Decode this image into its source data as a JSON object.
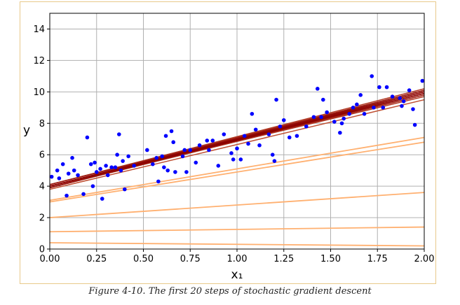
{
  "caption": "Figure 4-10. The first 20 steps of stochastic gradient descent",
  "chart_data": {
    "type": "scatter",
    "xlabel": "x₁",
    "ylabel": "y",
    "xlim": [
      0,
      2
    ],
    "ylim": [
      0,
      15
    ],
    "x_ticks": [
      "0.00",
      "0.25",
      "0.50",
      "0.75",
      "1.00",
      "1.25",
      "1.50",
      "1.75",
      "2.00"
    ],
    "y_ticks": [
      "0",
      "2",
      "4",
      "6",
      "8",
      "10",
      "12",
      "14"
    ],
    "grid": true,
    "colors": {
      "points": "#0000ff",
      "early_lines": "#ffb070",
      "late_lines": "#8b0000",
      "grid": "#b0b0b0"
    },
    "points": [
      [
        0.01,
        4.6
      ],
      [
        0.04,
        5.0
      ],
      [
        0.05,
        4.5
      ],
      [
        0.07,
        5.4
      ],
      [
        0.09,
        3.4
      ],
      [
        0.1,
        4.8
      ],
      [
        0.12,
        5.8
      ],
      [
        0.13,
        5.0
      ],
      [
        0.15,
        4.7
      ],
      [
        0.18,
        3.5
      ],
      [
        0.2,
        7.1
      ],
      [
        0.22,
        5.4
      ],
      [
        0.23,
        4.0
      ],
      [
        0.24,
        5.5
      ],
      [
        0.25,
        4.9
      ],
      [
        0.27,
        5.1
      ],
      [
        0.28,
        3.2
      ],
      [
        0.3,
        5.3
      ],
      [
        0.31,
        4.7
      ],
      [
        0.33,
        5.2
      ],
      [
        0.35,
        5.2
      ],
      [
        0.36,
        6.0
      ],
      [
        0.37,
        7.3
      ],
      [
        0.38,
        5.0
      ],
      [
        0.39,
        5.6
      ],
      [
        0.4,
        3.8
      ],
      [
        0.42,
        5.9
      ],
      [
        0.45,
        5.3
      ],
      [
        0.52,
        6.3
      ],
      [
        0.55,
        5.4
      ],
      [
        0.57,
        5.8
      ],
      [
        0.58,
        4.3
      ],
      [
        0.6,
        5.9
      ],
      [
        0.61,
        5.2
      ],
      [
        0.62,
        7.2
      ],
      [
        0.63,
        5.0
      ],
      [
        0.65,
        7.5
      ],
      [
        0.66,
        6.8
      ],
      [
        0.67,
        4.9
      ],
      [
        0.71,
        5.9
      ],
      [
        0.72,
        6.3
      ],
      [
        0.73,
        4.9
      ],
      [
        0.75,
        6.3
      ],
      [
        0.78,
        5.5
      ],
      [
        0.8,
        6.6
      ],
      [
        0.84,
        6.9
      ],
      [
        0.85,
        6.3
      ],
      [
        0.87,
        6.9
      ],
      [
        0.9,
        5.3
      ],
      [
        0.93,
        7.3
      ],
      [
        0.97,
        6.1
      ],
      [
        0.98,
        5.7
      ],
      [
        1.0,
        6.4
      ],
      [
        1.02,
        5.7
      ],
      [
        1.04,
        7.2
      ],
      [
        1.06,
        6.7
      ],
      [
        1.08,
        8.6
      ],
      [
        1.1,
        7.6
      ],
      [
        1.12,
        6.6
      ],
      [
        1.17,
        7.3
      ],
      [
        1.19,
        6.0
      ],
      [
        1.2,
        5.6
      ],
      [
        1.21,
        9.5
      ],
      [
        1.23,
        7.8
      ],
      [
        1.25,
        8.2
      ],
      [
        1.28,
        7.1
      ],
      [
        1.32,
        7.2
      ],
      [
        1.37,
        7.8
      ],
      [
        1.41,
        8.4
      ],
      [
        1.43,
        10.2
      ],
      [
        1.45,
        8.4
      ],
      [
        1.46,
        9.5
      ],
      [
        1.48,
        8.7
      ],
      [
        1.52,
        8.1
      ],
      [
        1.55,
        7.4
      ],
      [
        1.56,
        8.0
      ],
      [
        1.57,
        8.3
      ],
      [
        1.6,
        8.6
      ],
      [
        1.62,
        9.0
      ],
      [
        1.64,
        9.2
      ],
      [
        1.66,
        9.8
      ],
      [
        1.68,
        8.6
      ],
      [
        1.72,
        11.0
      ],
      [
        1.73,
        9.0
      ],
      [
        1.76,
        10.3
      ],
      [
        1.78,
        9.0
      ],
      [
        1.8,
        10.3
      ],
      [
        1.83,
        9.7
      ],
      [
        1.87,
        9.6
      ],
      [
        1.88,
        9.1
      ],
      [
        1.89,
        9.4
      ],
      [
        1.92,
        10.1
      ],
      [
        1.94,
        8.9
      ],
      [
        1.95,
        7.9
      ],
      [
        1.99,
        10.7
      ]
    ],
    "sgd_lines": [
      {
        "y0": 0.4,
        "y2": 0.2
      },
      {
        "y0": 1.1,
        "y2": 1.4
      },
      {
        "y0": 2.0,
        "y2": 3.6
      },
      {
        "y0": 3.0,
        "y2": 6.8
      },
      {
        "y0": 3.1,
        "y2": 7.1
      },
      {
        "y0": 3.8,
        "y2": 9.5
      },
      {
        "y0": 3.9,
        "y2": 9.8
      },
      {
        "y0": 4.0,
        "y2": 10.0
      },
      {
        "y0": 3.9,
        "y2": 9.9
      },
      {
        "y0": 4.1,
        "y2": 10.2
      },
      {
        "y0": 4.0,
        "y2": 9.7
      },
      {
        "y0": 4.1,
        "y2": 10.1
      },
      {
        "y0": 4.0,
        "y2": 9.9
      },
      {
        "y0": 3.9,
        "y2": 10.0
      },
      {
        "y0": 4.0,
        "y2": 9.8
      },
      {
        "y0": 4.1,
        "y2": 10.0
      },
      {
        "y0": 4.0,
        "y2": 10.1
      },
      {
        "y0": 3.9,
        "y2": 9.9
      },
      {
        "y0": 4.0,
        "y2": 10.0
      },
      {
        "y0": 4.0,
        "y2": 9.9
      }
    ]
  }
}
